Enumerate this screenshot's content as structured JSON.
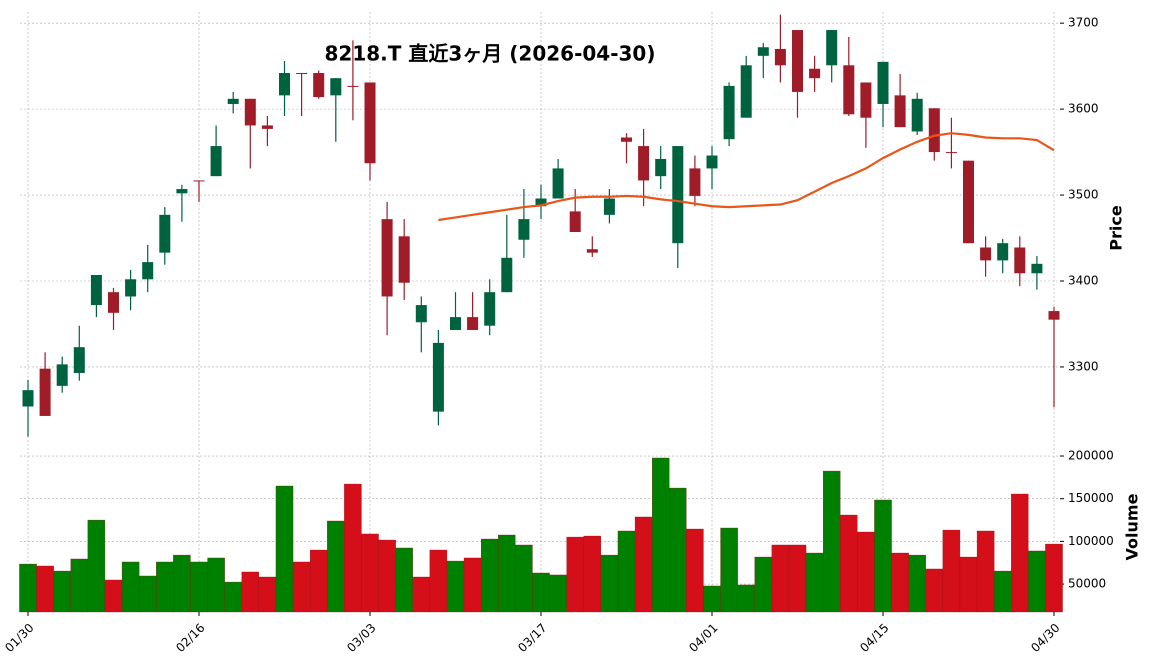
{
  "chart_data": {
    "type": "candlestick",
    "title": "8218.T  直近3ヶ月  (2026-04-30)",
    "ylabel": "Price",
    "y2label": "Volume",
    "categories": [
      "01/30",
      null,
      null,
      null,
      null,
      null,
      null,
      null,
      null,
      null,
      "02/16",
      null,
      null,
      null,
      null,
      null,
      null,
      null,
      null,
      null,
      "03/03",
      null,
      null,
      null,
      null,
      null,
      null,
      null,
      null,
      null,
      "03/17",
      null,
      null,
      null,
      null,
      null,
      null,
      null,
      null,
      null,
      "04/01",
      null,
      null,
      null,
      null,
      null,
      null,
      null,
      null,
      null,
      "04/15",
      null,
      null,
      null,
      null,
      null,
      null,
      null,
      null,
      null,
      "04/30"
    ],
    "open": [
      3254,
      3298,
      3278,
      3293,
      3372,
      3387,
      3382,
      3402,
      3433,
      3502,
      3517,
      3522,
      3606,
      3612,
      3581,
      3616,
      3642,
      3642,
      3616,
      3627,
      3631,
      3472,
      3452,
      3352,
      3248,
      3343,
      3358,
      3348,
      3387,
      3448,
      3487,
      3496,
      3481,
      3437,
      3477,
      3567,
      3557,
      3522,
      3444,
      3531,
      3531,
      3565,
      3590,
      3662,
      3670,
      3692,
      3647,
      3651,
      3651,
      3631,
      3606,
      3616,
      3574,
      3601,
      3550,
      3540,
      3439,
      3424,
      3439,
      3409,
      3365
    ],
    "high": [
      3285,
      3317,
      3312,
      3348,
      3407,
      3392,
      3413,
      3442,
      3486,
      3512,
      3517,
      3581,
      3620,
      3612,
      3592,
      3656,
      3642,
      3645,
      3636,
      3680,
      3631,
      3492,
      3472,
      3382,
      3343,
      3387,
      3387,
      3402,
      3477,
      3507,
      3512,
      3542,
      3507,
      3452,
      3507,
      3572,
      3577,
      3557,
      3557,
      3546,
      3557,
      3631,
      3662,
      3677,
      3710,
      3692,
      3662,
      3692,
      3684,
      3631,
      3655,
      3641,
      3619,
      3601,
      3590,
      3540,
      3452,
      3449,
      3452,
      3429,
      3370
    ],
    "low": [
      3219,
      3243,
      3270,
      3284,
      3358,
      3343,
      3366,
      3387,
      3419,
      3469,
      3492,
      3522,
      3595,
      3531,
      3557,
      3592,
      3592,
      3612,
      3562,
      3587,
      3517,
      3337,
      3378,
      3317,
      3232,
      3343,
      3343,
      3337,
      3387,
      3427,
      3472,
      3496,
      3457,
      3428,
      3467,
      3537,
      3487,
      3507,
      3415,
      3487,
      3507,
      3557,
      3590,
      3636,
      3631,
      3590,
      3620,
      3631,
      3592,
      3555,
      3579,
      3579,
      3570,
      3540,
      3531,
      3444,
      3405,
      3409,
      3394,
      3390,
      3253
    ],
    "close": [
      3273,
      3243,
      3303,
      3323,
      3407,
      3363,
      3402,
      3422,
      3477,
      3507,
      3516,
      3557,
      3612,
      3581,
      3577,
      3642,
      3641,
      3614,
      3636,
      3626,
      3537,
      3382,
      3398,
      3372,
      3328,
      3358,
      3343,
      3387,
      3427,
      3472,
      3496,
      3531,
      3457,
      3433,
      3496,
      3562,
      3517,
      3542,
      3557,
      3499,
      3546,
      3627,
      3651,
      3672,
      3651,
      3620,
      3636,
      3692,
      3594,
      3590,
      3655,
      3579,
      3612,
      3550,
      3549,
      3444,
      3424,
      3444,
      3409,
      3420,
      3355
    ],
    "ma_values": [
      null,
      null,
      null,
      null,
      null,
      null,
      null,
      null,
      null,
      null,
      null,
      null,
      null,
      null,
      null,
      null,
      null,
      null,
      null,
      null,
      null,
      null,
      null,
      null,
      3471,
      3474,
      3477,
      3480,
      3483,
      3486,
      3488,
      3493,
      3497,
      3498,
      3498,
      3499,
      3498,
      3495,
      3493,
      3490,
      3487,
      3486,
      3487,
      3488,
      3489,
      3494,
      3504,
      3514,
      3522,
      3531,
      3543,
      3553,
      3562,
      3569,
      3572,
      3570,
      3567,
      3566,
      3566,
      3564,
      3552
    ],
    "ma_color": "#e8561a",
    "volume": [
      73500,
      71200,
      65300,
      79400,
      125000,
      54800,
      75900,
      59500,
      75900,
      84000,
      75900,
      80600,
      52400,
      64200,
      58300,
      164900,
      75900,
      89900,
      123900,
      167200,
      108700,
      101600,
      92300,
      58300,
      89900,
      77000,
      80600,
      102800,
      107500,
      95800,
      63000,
      60700,
      105100,
      106300,
      84000,
      112200,
      128600,
      197700,
      162500,
      114500,
      47800,
      115700,
      49000,
      81700,
      95800,
      95800,
      86400,
      182400,
      130900,
      111000,
      148500,
      86400,
      84000,
      67700,
      113300,
      81700,
      112200,
      65300,
      155500,
      88800,
      96900
    ],
    "up_color": "#006340",
    "down_color": "#a01c28",
    "volume_up_color": "#008000",
    "volume_down_color": "#d40f1a",
    "ylim": [
      3215,
      3713
    ],
    "yticks": [
      3300,
      3400,
      3500,
      3600,
      3700
    ],
    "y2lim": [
      17300,
      212900
    ],
    "y2ticks": [
      50000,
      100000,
      150000,
      200000
    ],
    "grid": true
  }
}
